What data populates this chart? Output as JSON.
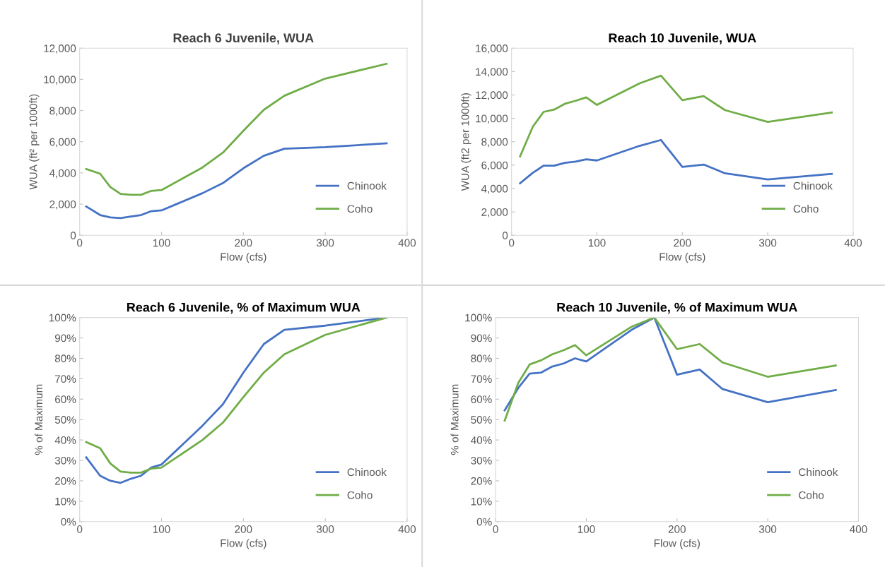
{
  "chart_data": [
    {
      "type": "line",
      "title": "Reach 6 Juvenile, WUA",
      "xlabel": "Flow (cfs)",
      "ylabel": "WUA (ft² per 1000ft)",
      "x": [
        8,
        25,
        37.5,
        50,
        62.5,
        75,
        87.5,
        100,
        150,
        175,
        200,
        225,
        250,
        300,
        375
      ],
      "xlim": [
        0,
        400
      ],
      "xticks": [
        0,
        100,
        200,
        300,
        400
      ],
      "ylim": [
        0,
        12000
      ],
      "yticks": [
        0,
        {
          "value": 2000,
          "label": "2,000"
        },
        {
          "value": 4000,
          "label": "4,000"
        },
        {
          "value": 6000,
          "label": "6,000"
        },
        {
          "value": 8000,
          "label": "8,000"
        },
        {
          "value": 10000,
          "label": "10,000"
        },
        {
          "value": 12000,
          "label": "12,000"
        }
      ],
      "legend": "bottom right",
      "grid": false,
      "series": [
        {
          "name": "Chinook",
          "color": "#4472c4",
          "values": [
            1850,
            1300,
            1150,
            1100,
            1200,
            1300,
            1550,
            1600,
            2700,
            3350,
            4300,
            5100,
            5550,
            5650,
            5900
          ]
        },
        {
          "name": "Coho",
          "color": "#70ad47",
          "values": [
            4250,
            3950,
            3100,
            2650,
            2600,
            2600,
            2850,
            2900,
            4350,
            5300,
            6700,
            8050,
            8950,
            10050,
            11000
          ]
        }
      ]
    },
    {
      "type": "line",
      "title": "Reach 10 Juvenile, WUA",
      "xlabel": "Flow (cfs)",
      "ylabel": "WUA (ft2 per 1000ft)",
      "x": [
        10,
        25,
        37.5,
        50,
        62.5,
        75,
        87.5,
        100,
        150,
        175,
        200,
        225,
        250,
        300,
        375
      ],
      "xlim": [
        0,
        400
      ],
      "xticks": [
        0,
        100,
        200,
        300,
        400
      ],
      "ylim": [
        0,
        16000
      ],
      "yticks": [
        0,
        {
          "value": 2000,
          "label": "2,000"
        },
        {
          "value": 4000,
          "label": "4,000"
        },
        {
          "value": 6000,
          "label": "6,000"
        },
        {
          "value": 8000,
          "label": "8,000"
        },
        {
          "value": 10000,
          "label": "10,000"
        },
        {
          "value": 12000,
          "label": "12,000"
        },
        {
          "value": 14000,
          "label": "14,000"
        },
        {
          "value": 16000,
          "label": "16,000"
        }
      ],
      "legend": "bottom right",
      "grid": false,
      "series": [
        {
          "name": "Chinook",
          "color": "#4472c4",
          "values": [
            4450,
            5350,
            5950,
            5950,
            6200,
            6300,
            6500,
            6400,
            7650,
            8150,
            5850,
            6050,
            5300,
            4780,
            5250
          ]
        },
        {
          "name": "Coho",
          "color": "#70ad47",
          "values": [
            6750,
            9300,
            10550,
            10750,
            11250,
            11500,
            11800,
            11150,
            13000,
            13650,
            11550,
            11900,
            10700,
            9700,
            10500
          ]
        }
      ]
    },
    {
      "type": "line",
      "title": "Reach 6 Juvenile, % of Maximum WUA",
      "xlabel": "Flow (cfs)",
      "ylabel": "% of Maximum",
      "x": [
        8,
        25,
        37.5,
        50,
        62.5,
        75,
        87.5,
        100,
        150,
        175,
        200,
        225,
        250,
        300,
        375
      ],
      "xlim": [
        0,
        400
      ],
      "xticks": [
        0,
        100,
        200,
        300,
        400
      ],
      "ylim": [
        0,
        100
      ],
      "yticks": [
        {
          "value": 0,
          "label": "0%"
        },
        {
          "value": 10,
          "label": "10%"
        },
        {
          "value": 20,
          "label": "20%"
        },
        {
          "value": 30,
          "label": "30%"
        },
        {
          "value": 40,
          "label": "40%"
        },
        {
          "value": 50,
          "label": "50%"
        },
        {
          "value": 60,
          "label": "60%"
        },
        {
          "value": 70,
          "label": "70%"
        },
        {
          "value": 80,
          "label": "80%"
        },
        {
          "value": 90,
          "label": "90%"
        },
        {
          "value": 100,
          "label": "100%"
        }
      ],
      "legend": "bottom right",
      "grid": false,
      "series": [
        {
          "name": "Chinook",
          "color": "#4472c4",
          "values": [
            31.5,
            22.5,
            20,
            19,
            21,
            22.5,
            26.5,
            28,
            47,
            57.5,
            73,
            87,
            94,
            96,
            100
          ]
        },
        {
          "name": "Coho",
          "color": "#70ad47",
          "values": [
            39,
            36,
            28.5,
            24.5,
            24,
            24,
            26,
            26.5,
            40,
            48.5,
            61,
            73,
            82,
            91.5,
            100
          ]
        }
      ]
    },
    {
      "type": "line",
      "title": "Reach 10 Juvenile, % of Maximum WUA",
      "xlabel": "Flow (cfs)",
      "ylabel": "% of Maximum",
      "x": [
        10,
        25,
        37.5,
        50,
        62.5,
        75,
        87.5,
        100,
        150,
        175,
        200,
        225,
        250,
        300,
        375
      ],
      "xlim": [
        0,
        400
      ],
      "xticks": [
        0,
        100,
        200,
        300,
        400
      ],
      "ylim": [
        0,
        100
      ],
      "yticks": [
        {
          "value": 0,
          "label": "0%"
        },
        {
          "value": 10,
          "label": "10%"
        },
        {
          "value": 20,
          "label": "20%"
        },
        {
          "value": 30,
          "label": "30%"
        },
        {
          "value": 40,
          "label": "40%"
        },
        {
          "value": 50,
          "label": "50%"
        },
        {
          "value": 60,
          "label": "60%"
        },
        {
          "value": 70,
          "label": "70%"
        },
        {
          "value": 80,
          "label": "80%"
        },
        {
          "value": 90,
          "label": "90%"
        },
        {
          "value": 100,
          "label": "100%"
        }
      ],
      "legend": "bottom right",
      "grid": false,
      "series": [
        {
          "name": "Chinook",
          "color": "#4472c4",
          "values": [
            54.5,
            65.5,
            72.5,
            73,
            76,
            77.5,
            80,
            78.5,
            94,
            100,
            72,
            74.5,
            65,
            58.5,
            64.5
          ]
        },
        {
          "name": "Coho",
          "color": "#70ad47",
          "values": [
            49.5,
            68,
            77,
            79,
            82,
            84,
            86.5,
            81.5,
            95.5,
            100,
            84.5,
            87,
            78,
            71,
            76.5
          ]
        }
      ]
    }
  ]
}
